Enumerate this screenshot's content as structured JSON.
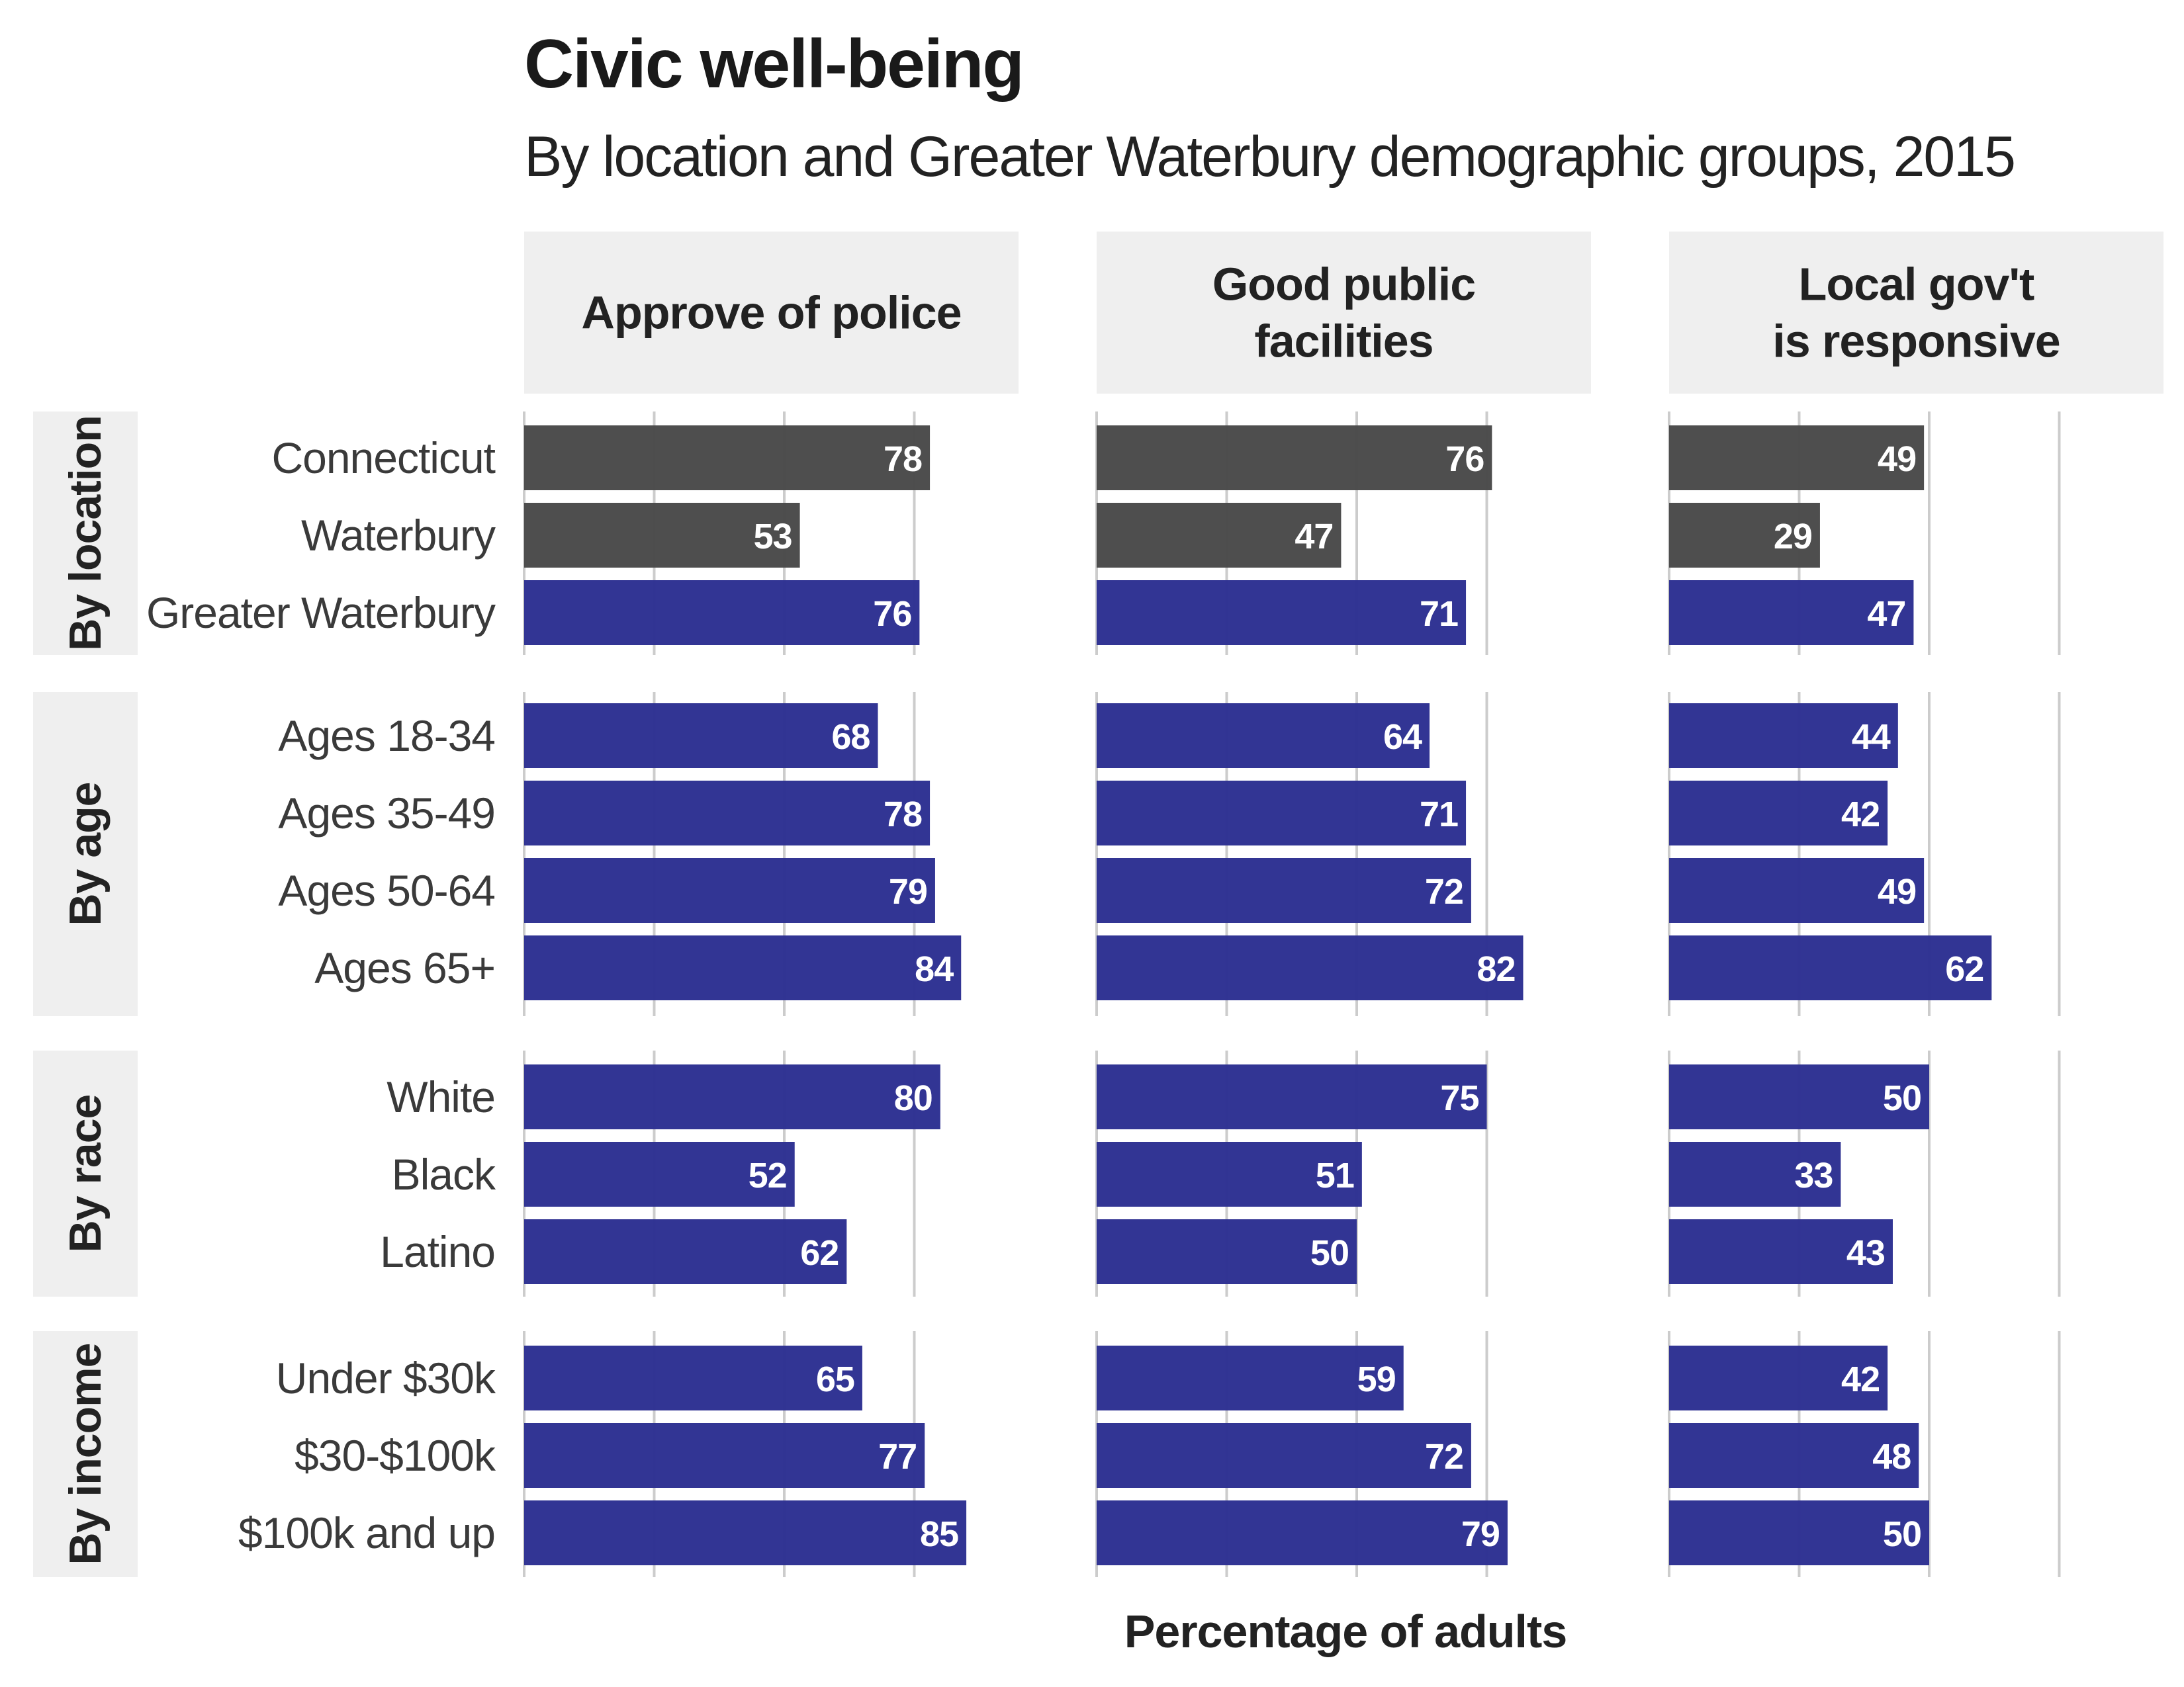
{
  "chart_data": {
    "type": "bar",
    "orientation": "horizontal",
    "title": "Civic well-being",
    "subtitle": "By location and Greater Waterbury demographic groups, 2015",
    "xlabel": "Percentage of adults",
    "ylabel": "",
    "xlim": [
      0,
      100
    ],
    "grid": true,
    "colors": {
      "highlight": "#2e3192",
      "comparison": "#4a4a4a",
      "strip": "#efefef",
      "grid": "#cccccc"
    },
    "facets": [
      "Approve of police",
      "Good public facilities",
      "Local gov't is responsive"
    ],
    "groups": [
      {
        "name": "By location",
        "categories": [
          "Connecticut",
          "Waterbury",
          "Greater Waterbury"
        ],
        "fill": [
          "comparison",
          "comparison",
          "highlight"
        ],
        "values": [
          [
            78,
            76,
            49
          ],
          [
            53,
            47,
            29
          ],
          [
            76,
            71,
            47
          ]
        ]
      },
      {
        "name": "By age",
        "categories": [
          "Ages 18-34",
          "Ages 35-49",
          "Ages 50-64",
          "Ages 65+"
        ],
        "fill": [
          "highlight",
          "highlight",
          "highlight",
          "highlight"
        ],
        "values": [
          [
            68,
            64,
            44
          ],
          [
            78,
            71,
            42
          ],
          [
            79,
            72,
            49
          ],
          [
            84,
            82,
            62
          ]
        ]
      },
      {
        "name": "By race",
        "categories": [
          "White",
          "Black",
          "Latino"
        ],
        "fill": [
          "highlight",
          "highlight",
          "highlight"
        ],
        "values": [
          [
            80,
            75,
            50
          ],
          [
            52,
            51,
            33
          ],
          [
            62,
            50,
            43
          ]
        ]
      },
      {
        "name": "By income",
        "categories": [
          "Under $30k",
          "$30-$100k",
          "$100k and up"
        ],
        "fill": [
          "highlight",
          "highlight",
          "highlight"
        ],
        "values": [
          [
            65,
            59,
            42
          ],
          [
            77,
            72,
            48
          ],
          [
            85,
            79,
            50
          ]
        ]
      }
    ]
  }
}
